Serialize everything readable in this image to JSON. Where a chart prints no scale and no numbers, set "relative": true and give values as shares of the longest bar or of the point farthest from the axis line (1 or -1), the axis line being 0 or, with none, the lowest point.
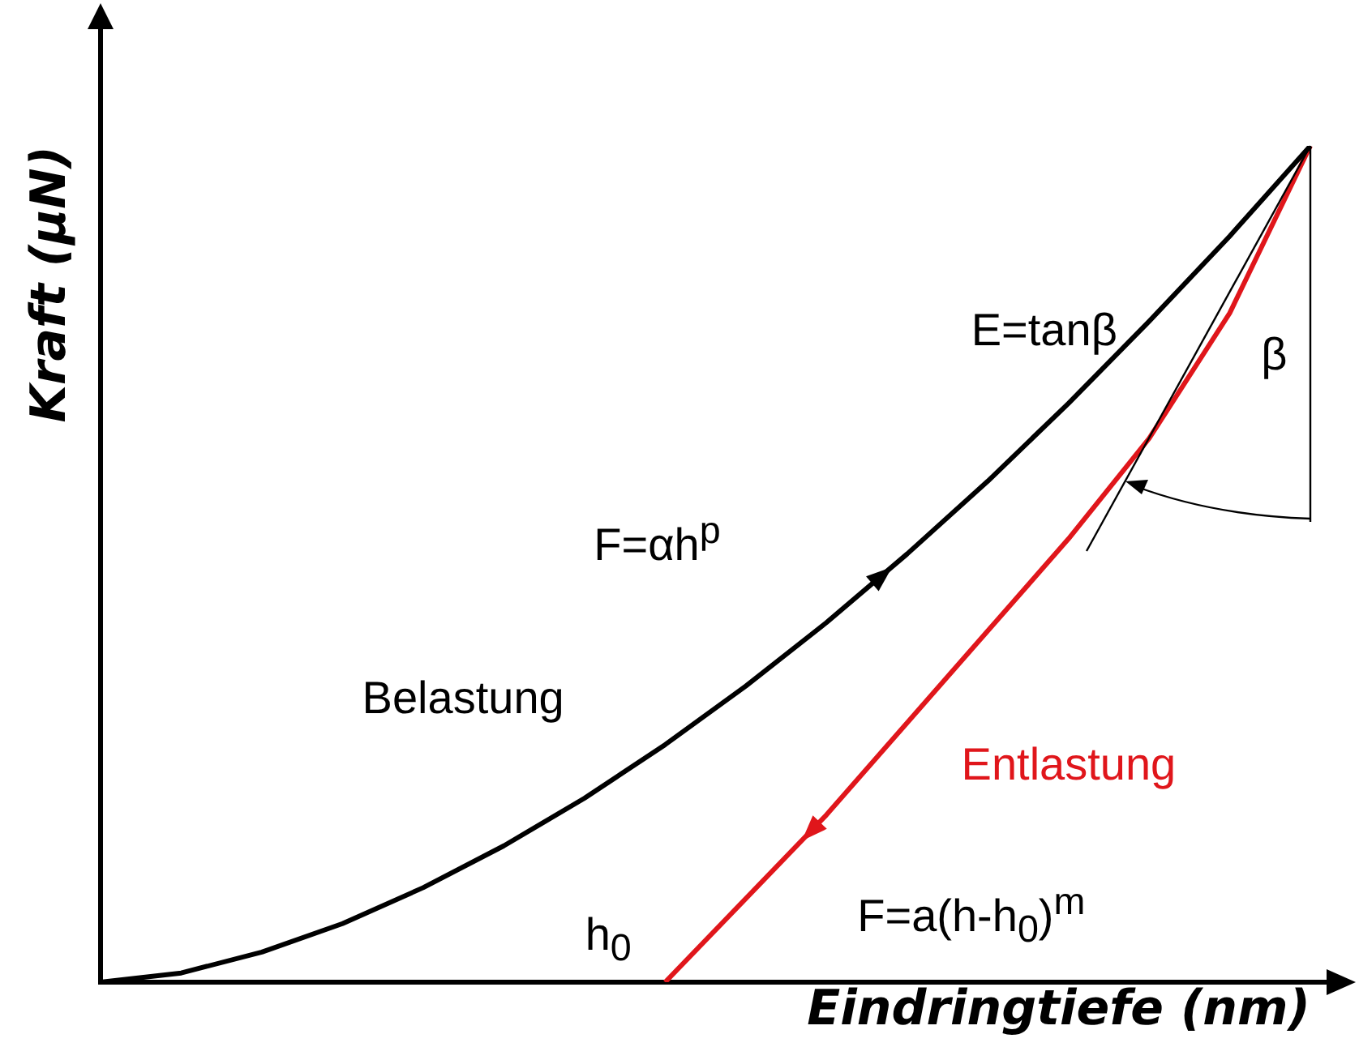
{
  "chart_data": {
    "type": "line",
    "relative": true,
    "xlabel": "Eindringtiefe (nm)",
    "ylabel": "Kraft (µN)",
    "categories": [
      null,
      null,
      null,
      null,
      null,
      null,
      null,
      null,
      null,
      null,
      null,
      null,
      null,
      null,
      null,
      null
    ],
    "series": [
      {
        "name": "Belastung",
        "color": "#000000",
        "values": [
          0,
          0.011,
          0.036,
          0.07,
          0.113,
          0.163,
          0.22,
          0.284,
          0.354,
          0.43,
          0.512,
          0.599,
          0.692,
          0.79,
          0.892,
          1
        ]
      },
      {
        "name": "Entlastung",
        "color": "#e0161b",
        "values": [
          null,
          null,
          null,
          null,
          null,
          null,
          null,
          0,
          0.1,
          0.2,
          0.31,
          0.42,
          0.53,
          0.65,
          0.8,
          1
        ]
      }
    ],
    "annotations": [
      "E=tanβ",
      "β",
      "F=αh$^{p}$",
      "h$_{0}$",
      "F=a(h-h$_{0}$)$^{m}$"
    ],
    "grid": false,
    "legend": false,
    "marker": "none",
    "line_style": "solid"
  }
}
